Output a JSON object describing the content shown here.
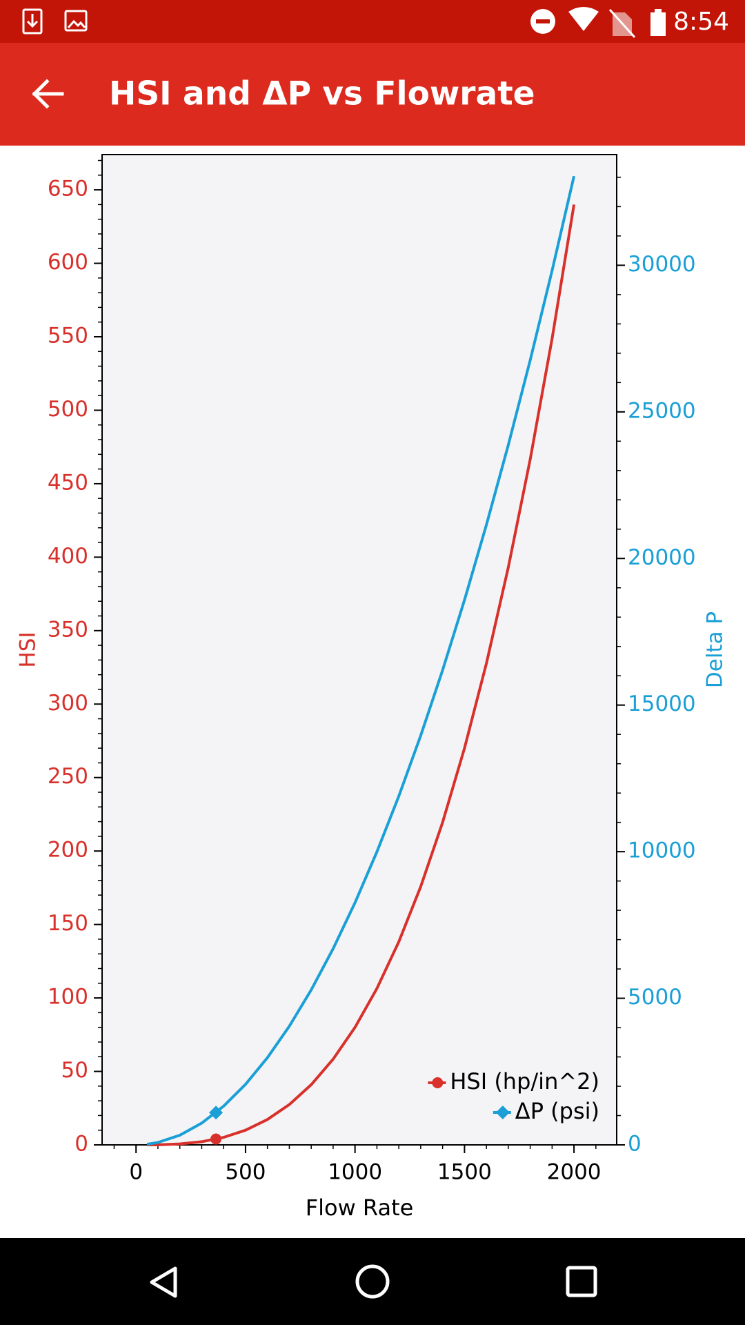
{
  "status_bar": {
    "time": "8:54"
  },
  "app_bar": {
    "title": "HSI and ΔP vs Flowrate"
  },
  "chart_data": {
    "type": "line",
    "x_label": "Flow Rate",
    "y_label": "HSI",
    "y2_label": "Delta P",
    "x": [
      50,
      100,
      200,
      300,
      400,
      500,
      600,
      700,
      800,
      900,
      1000,
      1100,
      1200,
      1300,
      1400,
      1500,
      1600,
      1700,
      1800,
      1900,
      2000
    ],
    "series": [
      {
        "name": "HSI (hp/in^2)",
        "color": "#d8302a",
        "marker": "circle",
        "values": [
          0.01,
          0.08,
          0.64,
          2.16,
          5.12,
          10,
          17.28,
          27.44,
          40.96,
          58.32,
          80,
          106.48,
          138.24,
          175.76,
          219.52,
          270,
          327.68,
          393.04,
          466.56,
          548.72,
          640
        ],
        "highlight": {
          "x": 365,
          "y": 4
        }
      },
      {
        "name": "ΔP (psi)",
        "color": "#1a9fd6",
        "marker": "diamond",
        "axis": "y2",
        "values": [
          21,
          83,
          330,
          743,
          1322,
          2065,
          2974,
          4047,
          5286,
          6691,
          8260,
          9995,
          11894,
          13959,
          16190,
          18585,
          21146,
          23871,
          26762,
          29819,
          33040
        ],
        "highlight": {
          "x": 365,
          "y": 1100
        }
      }
    ],
    "xlim": [
      -155,
      2195
    ],
    "ylim": [
      0,
      674
    ],
    "y2lim": [
      0,
      33775
    ],
    "xticks": [
      0,
      500,
      1000,
      1500,
      2000
    ],
    "yticks": [
      0,
      50,
      100,
      150,
      200,
      250,
      300,
      350,
      400,
      450,
      500,
      550,
      600,
      650
    ],
    "y2ticks": [
      0,
      5000,
      10000,
      15000,
      20000,
      25000,
      30000
    ],
    "minor_tick_step": {
      "x": 100,
      "y": 10,
      "y2": 1000
    },
    "legend": "lower right",
    "background": "#f4f4f6"
  }
}
